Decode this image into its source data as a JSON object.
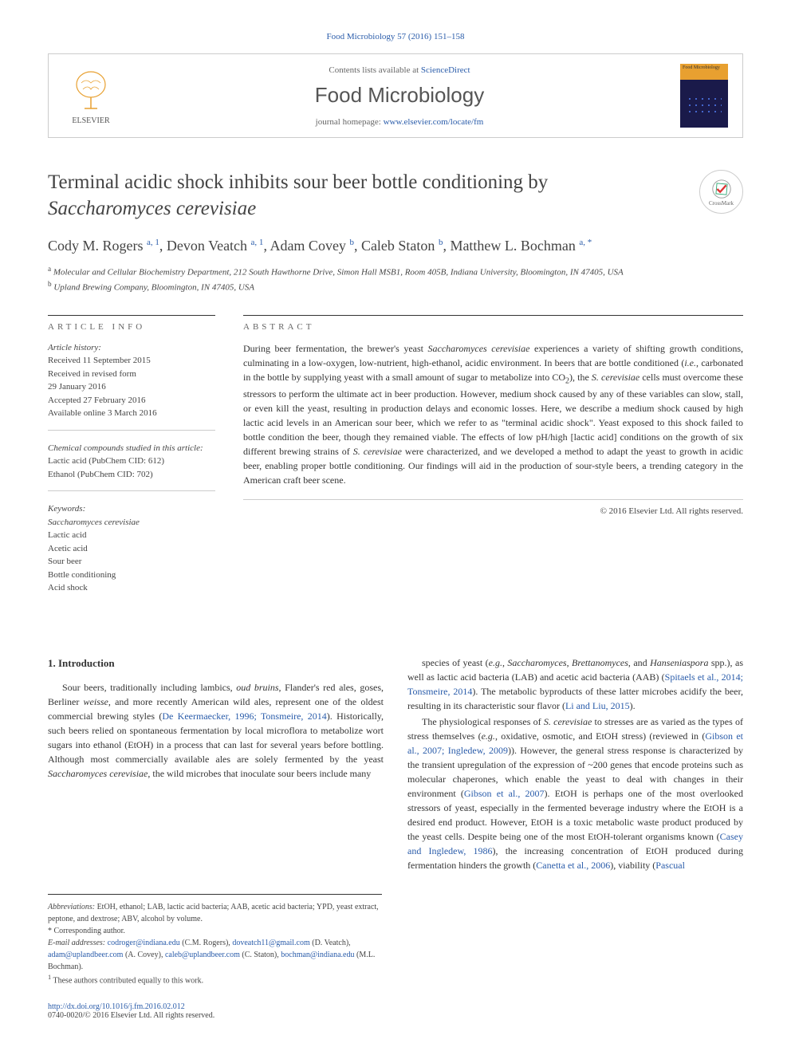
{
  "citation": {
    "journal": "Food Microbiology",
    "vol": "57",
    "year": "2016",
    "pages": "151–158",
    "url_text": "Food Microbiology 57 (2016) 151–158"
  },
  "header": {
    "contents_prefix": "Contents lists available at ",
    "contents_link": "ScienceDirect",
    "journal_name": "Food Microbiology",
    "homepage_prefix": "journal homepage: ",
    "homepage_link": "www.elsevier.com/locate/fm",
    "elsevier_label": "ELSEVIER",
    "cover_label": "Food Microbiology"
  },
  "title": {
    "line1": "Terminal acidic shock inhibits sour beer bottle conditioning by",
    "line2_italic": "Saccharomyces cerevisiae"
  },
  "crossmark": "CrossMark",
  "authors": {
    "list": [
      {
        "name": "Cody M. Rogers",
        "sup": "a, 1"
      },
      {
        "name": "Devon Veatch",
        "sup": "a, 1"
      },
      {
        "name": "Adam Covey",
        "sup": "b"
      },
      {
        "name": "Caleb Staton",
        "sup": "b"
      },
      {
        "name": "Matthew L. Bochman",
        "sup": "a, *"
      }
    ]
  },
  "affiliations": [
    {
      "sup": "a",
      "text": "Molecular and Cellular Biochemistry Department, 212 South Hawthorne Drive, Simon Hall MSB1, Room 405B, Indiana University, Bloomington, IN 47405, USA"
    },
    {
      "sup": "b",
      "text": "Upland Brewing Company, Bloomington, IN 47405, USA"
    }
  ],
  "article_info": {
    "heading": "ARTICLE INFO",
    "history_label": "Article history:",
    "history": [
      "Received 11 September 2015",
      "Received in revised form",
      "29 January 2016",
      "Accepted 27 February 2016",
      "Available online 3 March 2016"
    ],
    "compounds_label": "Chemical compounds studied in this article:",
    "compounds": [
      "Lactic acid (PubChem CID: 612)",
      "Ethanol (PubChem CID: 702)"
    ],
    "keywords_label": "Keywords:",
    "keywords": [
      "Saccharomyces cerevisiae",
      "Lactic acid",
      "Acetic acid",
      "Sour beer",
      "Bottle conditioning",
      "Acid shock"
    ]
  },
  "abstract": {
    "heading": "ABSTRACT",
    "text": "During beer fermentation, the brewer's yeast <em>Saccharomyces cerevisiae</em> experiences a variety of shifting growth conditions, culminating in a low-oxygen, low-nutrient, high-ethanol, acidic environment. In beers that are bottle conditioned (<em>i.e.</em>, carbonated in the bottle by supplying yeast with a small amount of sugar to metabolize into CO<sub>2</sub>), the <em>S. cerevisiae</em> cells must overcome these stressors to perform the ultimate act in beer production. However, medium shock caused by any of these variables can slow, stall, or even kill the yeast, resulting in production delays and economic losses. Here, we describe a medium shock caused by high lactic acid levels in an American sour beer, which we refer to as \"terminal acidic shock\". Yeast exposed to this shock failed to bottle condition the beer, though they remained viable. The effects of low pH/high [lactic acid] conditions on the growth of six different brewing strains of <em>S. cerevisiae</em> were characterized, and we developed a method to adapt the yeast to growth in acidic beer, enabling proper bottle conditioning. Our findings will aid in the production of sour-style beers, a trending category in the American craft beer scene.",
    "copyright": "© 2016 Elsevier Ltd. All rights reserved."
  },
  "body": {
    "intro_heading": "1. Introduction",
    "col1_p1": "Sour beers, traditionally including lambics, <em>oud bruins</em>, Flander's red ales, goses, Berliner <em>weisse</em>, and more recently American wild ales, represent one of the oldest commercial brewing styles (<a>De Keermaecker, 1996; Tonsmeire, 2014</a>). Historically, such beers relied on spontaneous fermentation by local microflora to metabolize wort sugars into ethanol (EtOH) in a process that can last for several years before bottling. Although most commercially available ales are solely fermented by the yeast <em>Saccharomyces cerevisiae</em>, the wild microbes that inoculate sour beers include many",
    "col2_p1": "species of yeast (<em>e.g.</em>, <em>Saccharomyces</em>, <em>Brettanomyces</em>, and <em>Hanseniaspora</em> spp.), as well as lactic acid bacteria (LAB) and acetic acid bacteria (AAB) (<a>Spitaels et al., 2014; Tonsmeire, 2014</a>). The metabolic byproducts of these latter microbes acidify the beer, resulting in its characteristic sour flavor (<a>Li and Liu, 2015</a>).",
    "col2_p2": "The physiological responses of <em>S. cerevisiae</em> to stresses are as varied as the types of stress themselves (<em>e.g.</em>, oxidative, osmotic, and EtOH stress) (reviewed in (<a>Gibson et al., 2007; Ingledew, 2009</a>)). However, the general stress response is characterized by the transient upregulation of the expression of ~200 genes that encode proteins such as molecular chaperones, which enable the yeast to deal with changes in their environment (<a>Gibson et al., 2007</a>). EtOH is perhaps one of the most overlooked stressors of yeast, especially in the fermented beverage industry where the EtOH is a desired end product. However, EtOH is a toxic metabolic waste product produced by the yeast cells. Despite being one of the most EtOH-tolerant organisms known (<a>Casey and Ingledew, 1986</a>), the increasing concentration of EtOH produced during fermentation hinders the growth (<a>Canetta et al., 2006</a>), viability (<a>Pascual</a>"
  },
  "footnotes": {
    "abbrev_label": "Abbreviations:",
    "abbrev": " EtOH, ethanol; LAB, lactic acid bacteria; AAB, acetic acid bacteria; YPD, yeast extract, peptone, and dextrose; ABV, alcohol by volume.",
    "corr": "* Corresponding author.",
    "email_label": "E-mail addresses:",
    "emails": [
      {
        "addr": "codroger@indiana.edu",
        "who": "(C.M. Rogers)"
      },
      {
        "addr": "doveatch11@gmail.com",
        "who": "(D. Veatch)"
      },
      {
        "addr": "adam@uplandbeer.com",
        "who": "(A. Covey)"
      },
      {
        "addr": "caleb@uplandbeer.com",
        "who": "(C. Staton)"
      },
      {
        "addr": "bochman@indiana.edu",
        "who": "(M.L. Bochman)"
      }
    ],
    "equal": "These authors contributed equally to this work.",
    "equal_sup": "1"
  },
  "footer": {
    "doi": "http://dx.doi.org/10.1016/j.fm.2016.02.012",
    "issn": "0740-0020/© 2016 Elsevier Ltd. All rights reserved."
  },
  "colors": {
    "link": "#2a5caa",
    "text": "#333",
    "muted": "#666",
    "border": "#ccc"
  }
}
